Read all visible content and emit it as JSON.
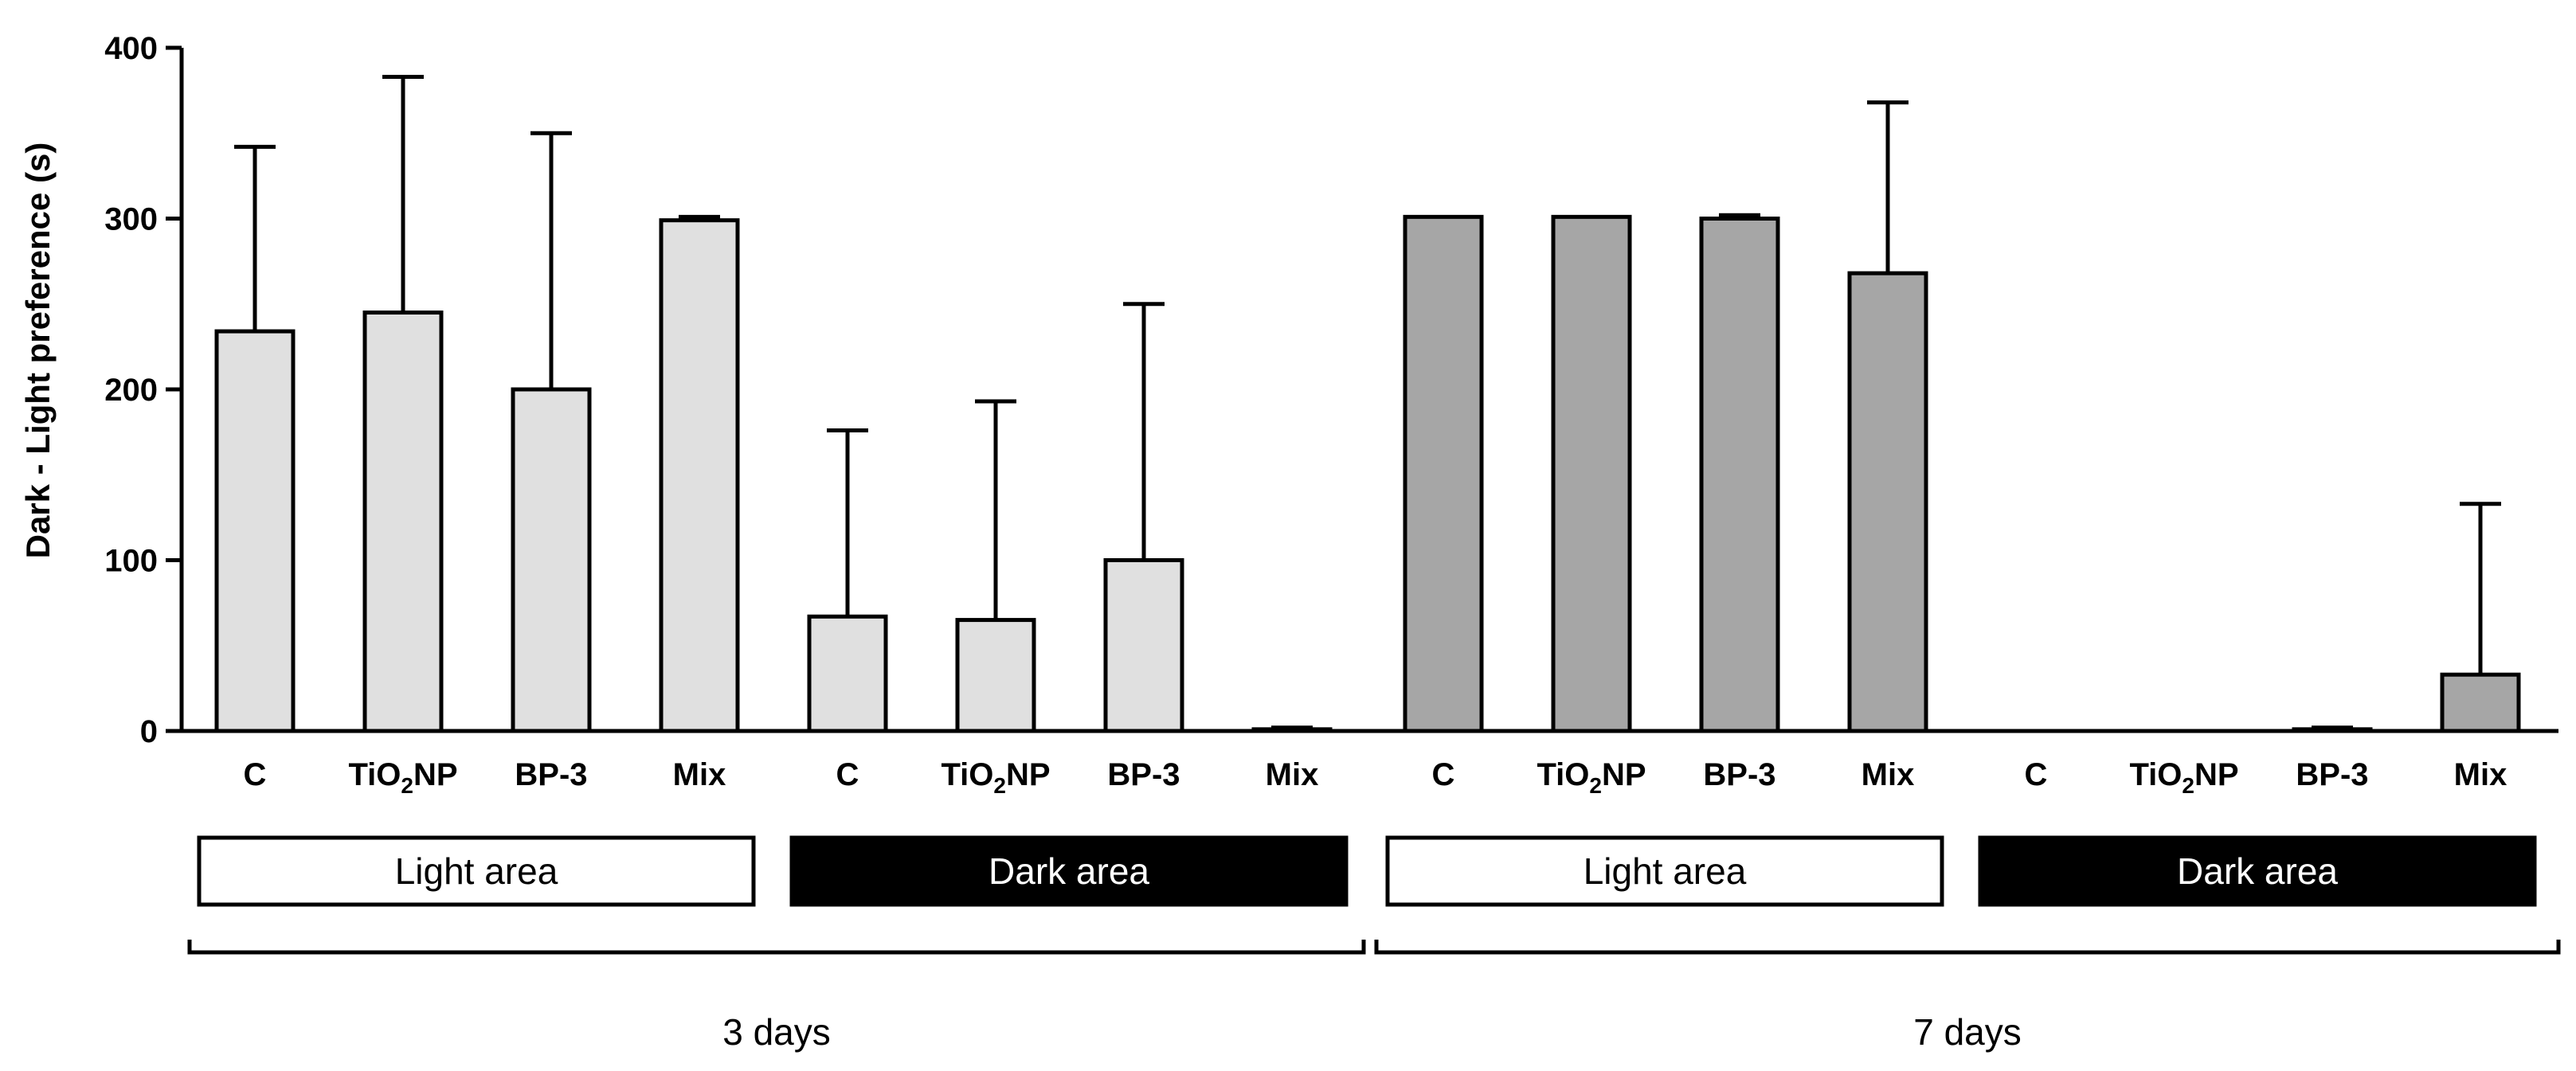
{
  "chart_data": {
    "type": "bar",
    "ylabel": "Dark - Light preference  (s)",
    "ylim": [
      0,
      400
    ],
    "yticks": [
      0,
      100,
      200,
      300,
      400
    ],
    "groups": [
      {
        "name": "3 days",
        "color": "#e0e0e0",
        "areas": [
          {
            "label": "Light area",
            "style": "outlined",
            "bars": [
              {
                "category": "C",
                "value": 234,
                "error": 108
              },
              {
                "category": "TiO2NP",
                "value": 245,
                "error": 138
              },
              {
                "category": "BP-3",
                "value": 200,
                "error": 150
              },
              {
                "category": "Mix",
                "value": 299,
                "error": 2
              }
            ]
          },
          {
            "label": "Dark area",
            "style": "filled",
            "bars": [
              {
                "category": "C",
                "value": 67,
                "error": 109
              },
              {
                "category": "TiO2NP",
                "value": 65,
                "error": 128
              },
              {
                "category": "BP-3",
                "value": 100,
                "error": 150
              },
              {
                "category": "Mix",
                "value": 1,
                "error": 1
              }
            ]
          }
        ]
      },
      {
        "name": "7 days",
        "color": "#a6a6a6",
        "areas": [
          {
            "label": "Light area",
            "style": "outlined",
            "bars": [
              {
                "category": "C",
                "value": 301,
                "error": 0
              },
              {
                "category": "TiO2NP",
                "value": 301,
                "error": 0
              },
              {
                "category": "BP-3",
                "value": 300,
                "error": 2
              },
              {
                "category": "Mix",
                "value": 268,
                "error": 100
              }
            ]
          },
          {
            "label": "Dark area",
            "style": "filled",
            "bars": [
              {
                "category": "C",
                "value": 0,
                "error": 0
              },
              {
                "category": "TiO2NP",
                "value": 0,
                "error": 0
              },
              {
                "category": "BP-3",
                "value": 1,
                "error": 1
              },
              {
                "category": "Mix",
                "value": 33,
                "error": 100
              }
            ]
          }
        ]
      }
    ]
  }
}
